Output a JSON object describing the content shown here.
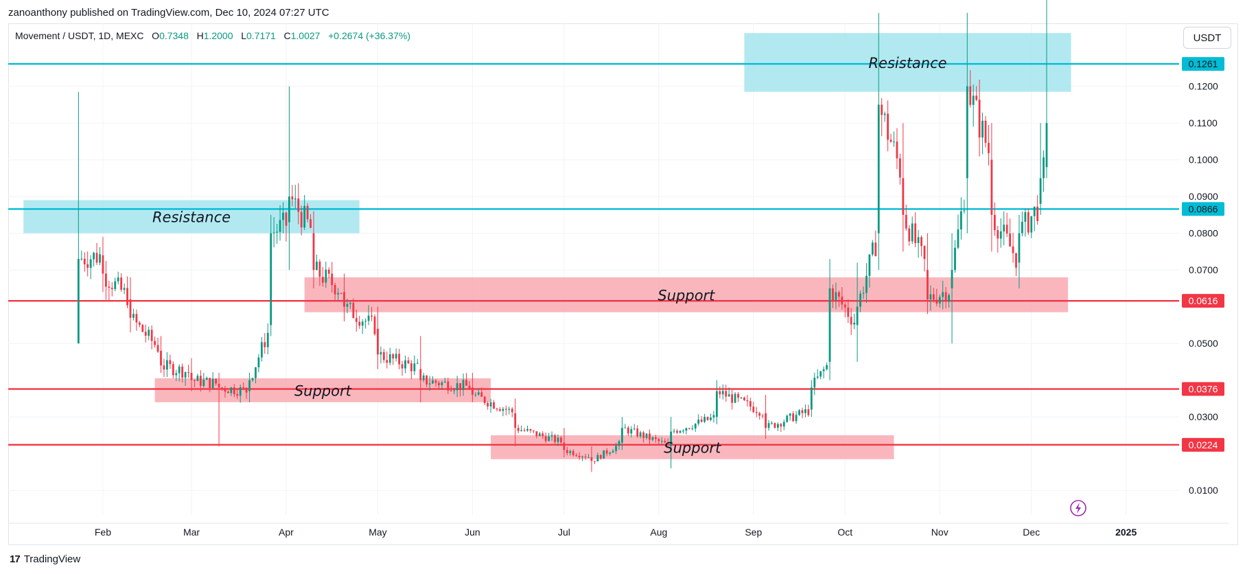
{
  "header": {
    "published_by": "zanoanthony published on TradingView.com, Dec 10, 2024 07:27 UTC"
  },
  "legend": {
    "symbol": "Movement / USDT, 1D, MEXC",
    "open_label": "O",
    "open": "0.7348",
    "high_label": "H",
    "high": "1.2000",
    "low_label": "L",
    "low": "0.7171",
    "close_label": "C",
    "close": "1.0027",
    "change": "+0.2674 (+36.37%)"
  },
  "currency_button": "USDT",
  "footer": {
    "brand": "TradingView",
    "logo": "17"
  },
  "colors": {
    "up": "#089981",
    "down": "#f23645",
    "support_line": "#f23645",
    "resistance_line": "#00bcd4",
    "support_zone": "#f7a5ad",
    "resistance_zone": "#9fe3ee"
  },
  "chart_data": {
    "type": "candlestick",
    "ylim": [
      0.0,
      0.135
    ],
    "y_ticks": [
      "0.1200",
      "0.1100",
      "0.1000",
      "0.0900",
      "0.0800",
      "0.0700",
      "0.0500",
      "0.0300",
      "0.0100"
    ],
    "x_ticks": [
      "Feb",
      "Mar",
      "Apr",
      "May",
      "Jun",
      "Jul",
      "Aug",
      "Sep",
      "Oct",
      "Nov",
      "Dec",
      "2025"
    ],
    "price_lines": [
      {
        "value": 0.1261,
        "label": "0.1261",
        "kind": "resistance"
      },
      {
        "value": 0.0866,
        "label": "0.0866",
        "kind": "resistance"
      },
      {
        "value": 0.0616,
        "label": "0.0616",
        "kind": "support"
      },
      {
        "value": 0.0376,
        "label": "0.0376",
        "kind": "support"
      },
      {
        "value": 0.0224,
        "label": "0.0224",
        "kind": "support"
      }
    ],
    "zones": [
      {
        "label": "Resistance",
        "kind": "resistance",
        "x_start": "2024-01-06",
        "x_end": "2024-04-25",
        "y_low": 0.08,
        "y_high": 0.089
      },
      {
        "label": "Resistance",
        "kind": "resistance",
        "x_start": "2024-08-29",
        "x_end": "2024-12-14",
        "y_low": 0.1185,
        "y_high": 0.1345
      },
      {
        "label": "Support",
        "kind": "support",
        "x_start": "2024-04-07",
        "x_end": "2024-12-13",
        "y_low": 0.0585,
        "y_high": 0.068
      },
      {
        "label": "Support",
        "kind": "support",
        "x_start": "2024-02-18",
        "x_end": "2024-06-07",
        "y_low": 0.034,
        "y_high": 0.0405
      },
      {
        "label": "Support",
        "kind": "support",
        "x_start": "2024-06-07",
        "x_end": "2024-10-17",
        "y_low": 0.0185,
        "y_high": 0.025
      }
    ],
    "ohlc_anchors": [
      {
        "date": "2024-01-24",
        "open": 0.05,
        "high": 0.1185,
        "low": 0.05,
        "close": 0.073
      },
      {
        "date": "2024-02-01",
        "open": 0.074,
        "high": 0.079,
        "low": 0.064,
        "close": 0.069
      },
      {
        "date": "2024-02-10",
        "open": 0.062,
        "high": 0.068,
        "low": 0.053,
        "close": 0.057
      },
      {
        "date": "2024-02-20",
        "open": 0.048,
        "high": 0.052,
        "low": 0.042,
        "close": 0.044
      },
      {
        "date": "2024-03-01",
        "open": 0.042,
        "high": 0.046,
        "low": 0.037,
        "close": 0.04
      },
      {
        "date": "2024-03-10",
        "open": 0.039,
        "high": 0.042,
        "low": 0.022,
        "close": 0.038
      },
      {
        "date": "2024-03-20",
        "open": 0.037,
        "high": 0.042,
        "low": 0.034,
        "close": 0.04
      },
      {
        "date": "2024-03-27",
        "open": 0.055,
        "high": 0.085,
        "low": 0.052,
        "close": 0.08
      },
      {
        "date": "2024-04-02",
        "open": 0.083,
        "high": 0.12,
        "low": 0.07,
        "close": 0.09
      },
      {
        "date": "2024-04-10",
        "open": 0.08,
        "high": 0.086,
        "low": 0.065,
        "close": 0.07
      },
      {
        "date": "2024-04-20",
        "open": 0.064,
        "high": 0.069,
        "low": 0.056,
        "close": 0.06
      },
      {
        "date": "2024-05-01",
        "open": 0.054,
        "high": 0.06,
        "low": 0.043,
        "close": 0.047
      },
      {
        "date": "2024-05-15",
        "open": 0.043,
        "high": 0.052,
        "low": 0.034,
        "close": 0.04
      },
      {
        "date": "2024-06-01",
        "open": 0.038,
        "high": 0.042,
        "low": 0.034,
        "close": 0.036
      },
      {
        "date": "2024-06-15",
        "open": 0.031,
        "high": 0.035,
        "low": 0.022,
        "close": 0.027
      },
      {
        "date": "2024-07-01",
        "open": 0.023,
        "high": 0.027,
        "low": 0.019,
        "close": 0.021
      },
      {
        "date": "2024-07-10",
        "open": 0.019,
        "high": 0.022,
        "low": 0.015,
        "close": 0.018
      },
      {
        "date": "2024-07-20",
        "open": 0.023,
        "high": 0.03,
        "low": 0.021,
        "close": 0.027
      },
      {
        "date": "2024-08-05",
        "open": 0.022,
        "high": 0.03,
        "low": 0.016,
        "close": 0.026
      },
      {
        "date": "2024-08-20",
        "open": 0.03,
        "high": 0.04,
        "low": 0.028,
        "close": 0.037
      },
      {
        "date": "2024-09-05",
        "open": 0.031,
        "high": 0.036,
        "low": 0.024,
        "close": 0.027
      },
      {
        "date": "2024-09-20",
        "open": 0.032,
        "high": 0.04,
        "low": 0.03,
        "close": 0.038
      },
      {
        "date": "2024-09-26",
        "open": 0.045,
        "high": 0.073,
        "low": 0.04,
        "close": 0.065
      },
      {
        "date": "2024-10-05",
        "open": 0.055,
        "high": 0.072,
        "low": 0.045,
        "close": 0.06
      },
      {
        "date": "2024-10-12",
        "open": 0.08,
        "high": 0.14,
        "low": 0.07,
        "close": 0.115
      },
      {
        "date": "2024-10-20",
        "open": 0.095,
        "high": 0.11,
        "low": 0.075,
        "close": 0.085
      },
      {
        "date": "2024-10-28",
        "open": 0.07,
        "high": 0.08,
        "low": 0.058,
        "close": 0.062
      },
      {
        "date": "2024-11-05",
        "open": 0.065,
        "high": 0.08,
        "low": 0.05,
        "close": 0.07
      },
      {
        "date": "2024-11-10",
        "open": 0.095,
        "high": 0.14,
        "low": 0.08,
        "close": 0.12
      },
      {
        "date": "2024-11-18",
        "open": 0.1,
        "high": 0.11,
        "low": 0.075,
        "close": 0.085
      },
      {
        "date": "2024-11-27",
        "open": 0.072,
        "high": 0.085,
        "low": 0.065,
        "close": 0.08
      },
      {
        "date": "2024-12-04",
        "open": 0.088,
        "high": 0.11,
        "low": 0.085,
        "close": 0.095
      },
      {
        "date": "2024-12-06",
        "open": 0.098,
        "high": 0.145,
        "low": 0.095,
        "close": 0.11
      }
    ]
  }
}
